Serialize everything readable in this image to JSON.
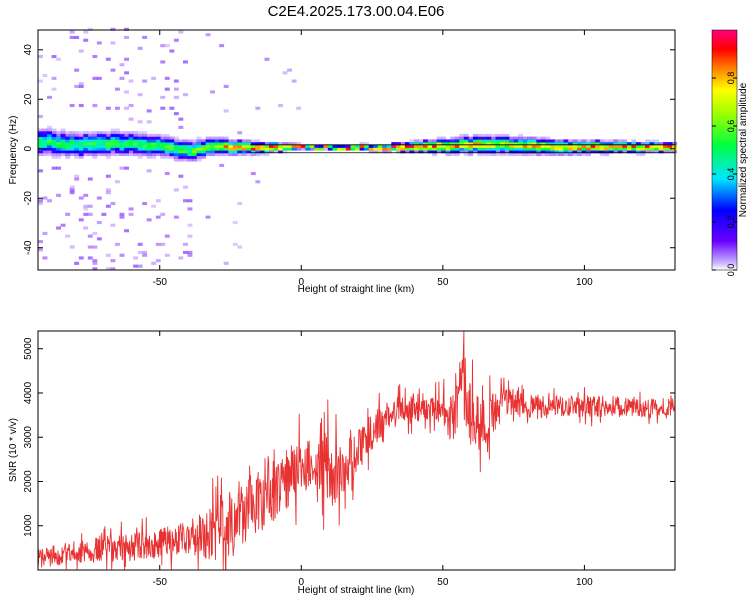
{
  "title": "C2E4.2025.173.00.04.E06",
  "colors": {
    "signal": "#e83232",
    "frame": "#000000",
    "background": "#ffffff",
    "trace_line": "#000000"
  },
  "chart_data": [
    {
      "type": "heatmap",
      "xlabel": "Height of straight line (km)",
      "ylabel": "Frequency (Hz)",
      "xlim": [
        -93,
        132
      ],
      "ylim": [
        -49,
        48
      ],
      "xticks": [
        -50,
        0,
        50,
        100
      ],
      "yticks": [
        -40,
        -20,
        0,
        20,
        40
      ],
      "grid": false,
      "colorbar": {
        "label": "Normalized spectral amplitude",
        "range": [
          0,
          1
        ],
        "ticks": [
          "0.0",
          "0.2",
          "0.4",
          "0.6",
          "0.8"
        ],
        "colormap": "hsv-rainbow (purple to magenta)"
      },
      "ridge": {
        "x": [
          -93,
          -80,
          -65,
          -50,
          -40,
          -33,
          -25,
          -15,
          -5,
          0,
          10,
          20,
          30,
          40,
          50,
          60,
          70,
          80,
          90,
          100,
          110,
          120,
          132
        ],
        "center_freq": [
          2.5,
          1.0,
          1.8,
          0.5,
          -1.5,
          0.5,
          0.0,
          0.0,
          0.2,
          0.0,
          0.0,
          0.0,
          0.0,
          0.0,
          0.5,
          1.0,
          1.0,
          0.5,
          0.3,
          0.2,
          0.2,
          0.0,
          0.0
        ],
        "half_width_hz": [
          4.5,
          4.0,
          4.0,
          3.5,
          3.5,
          3.0,
          2.5,
          2.0,
          1.2,
          0.8,
          0.8,
          1.0,
          1.2,
          2.0,
          2.5,
          3.0,
          3.0,
          2.8,
          2.5,
          2.2,
          2.0,
          1.8,
          1.5
        ],
        "peak_amplitude": [
          0.55,
          0.55,
          0.55,
          0.6,
          0.6,
          0.7,
          0.85,
          0.9,
          0.95,
          0.95,
          0.95,
          0.95,
          0.95,
          0.95,
          0.85,
          0.8,
          0.75,
          0.8,
          0.85,
          0.9,
          0.9,
          0.95,
          0.95
        ]
      }
    },
    {
      "type": "line",
      "xlabel": "Height of straight line (km)",
      "ylabel": "SNR (10 * v/v)",
      "xlim": [
        -93,
        132
      ],
      "ylim": [
        0,
        5400
      ],
      "xticks": [
        -50,
        0,
        50,
        100
      ],
      "yticks": [
        1000,
        2000,
        3000,
        4000,
        5000
      ],
      "grid": false,
      "series": [
        {
          "x": [
            -93,
            -85,
            -75,
            -65,
            -55,
            -45,
            -38,
            -30,
            -25,
            -20,
            -15,
            -10,
            -5,
            0,
            5,
            8,
            10,
            15,
            20,
            25,
            30,
            35,
            40,
            45,
            50,
            53,
            55,
            57,
            60,
            65,
            70,
            75,
            80,
            90,
            100,
            110,
            120,
            132
          ],
          "values": [
            250,
            350,
            450,
            500,
            550,
            650,
            750,
            850,
            1100,
            1350,
            1600,
            1900,
            2100,
            2350,
            2400,
            2700,
            2000,
            2300,
            2700,
            3100,
            3500,
            3650,
            3700,
            3650,
            3650,
            3400,
            3900,
            4300,
            3400,
            3300,
            3750,
            3800,
            3700,
            3700,
            3700,
            3700,
            3650,
            3700
          ],
          "noise_amplitude": [
            250,
            300,
            350,
            380,
            400,
            450,
            550,
            900,
            1100,
            900,
            1000,
            1000,
            900,
            800,
            600,
            1300,
            1000,
            700,
            600,
            500,
            400,
            350,
            400,
            350,
            400,
            700,
            900,
            1000,
            900,
            700,
            450,
            400,
            350,
            300,
            300,
            300,
            250,
            250
          ]
        }
      ]
    }
  ]
}
